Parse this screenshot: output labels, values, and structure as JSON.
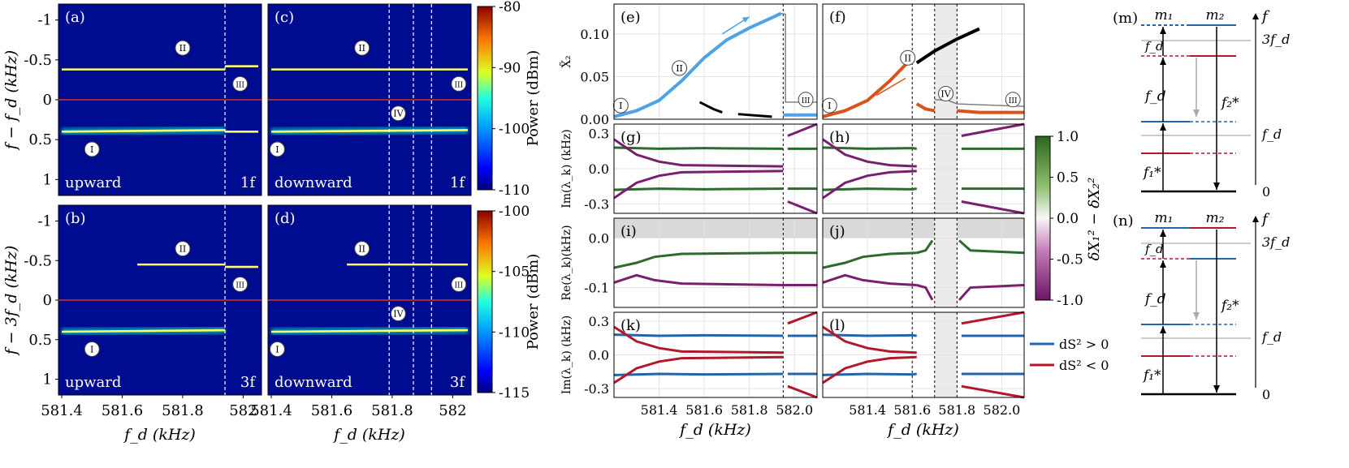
{
  "figure": {
    "spectrograms": [
      {
        "id": "a",
        "label": "(a)",
        "direction": "upward",
        "harmonic": "1f",
        "dashes": [
          581.94
        ],
        "branches": [
          {
            "y0": -0.38,
            "y1": -0.38,
            "xs": 581.4,
            "xe": 581.94,
            "feature": "II"
          },
          {
            "y0": 0.4,
            "y1": 0.38,
            "xs": 581.4,
            "xe": 581.94,
            "feature": "I"
          },
          {
            "y0": -0.42,
            "y1": -0.42,
            "xs": 581.94,
            "xe": 582.05,
            "feature": ""
          },
          {
            "y0": 0.4,
            "y1": 0.4,
            "xs": 581.94,
            "xe": 582.05,
            "feature": ""
          }
        ],
        "markers": [
          {
            "t": "II",
            "x": 581.8,
            "y": -0.65
          },
          {
            "t": "I",
            "x": 581.5,
            "y": 0.62
          },
          {
            "t": "III",
            "x": 581.99,
            "y": -0.2
          }
        ]
      },
      {
        "id": "c",
        "label": "(c)",
        "direction": "downward",
        "harmonic": "1f",
        "dashes": [
          581.79,
          581.87,
          581.93
        ],
        "branches": [
          {
            "y0": -0.38,
            "y1": -0.38,
            "xs": 581.4,
            "xe": 582.05,
            "feature": "II"
          },
          {
            "y0": 0.4,
            "y1": 0.38,
            "xs": 581.4,
            "xe": 582.05,
            "feature": "I"
          }
        ],
        "markers": [
          {
            "t": "II",
            "x": 581.7,
            "y": -0.65
          },
          {
            "t": "I",
            "x": 581.42,
            "y": 0.62
          },
          {
            "t": "III",
            "x": 582.02,
            "y": -0.2
          },
          {
            "t": "IV",
            "x": 581.82,
            "y": 0.17
          }
        ]
      },
      {
        "id": "b",
        "label": "(b)",
        "direction": "upward",
        "harmonic": "3f",
        "dashes": [
          581.94
        ],
        "branches": [
          {
            "y0": -0.45,
            "y1": -0.45,
            "xs": 581.65,
            "xe": 581.94,
            "feature": "II"
          },
          {
            "y0": 0.4,
            "y1": 0.38,
            "xs": 581.4,
            "xe": 581.94,
            "feature": "I"
          },
          {
            "y0": -0.42,
            "y1": -0.42,
            "xs": 581.94,
            "xe": 582.05,
            "feature": ""
          }
        ],
        "markers": [
          {
            "t": "II",
            "x": 581.8,
            "y": -0.65
          },
          {
            "t": "I",
            "x": 581.5,
            "y": 0.62
          },
          {
            "t": "III",
            "x": 581.99,
            "y": -0.2
          }
        ]
      },
      {
        "id": "d",
        "label": "(d)",
        "direction": "downward",
        "harmonic": "3f",
        "dashes": [
          581.79,
          581.87,
          581.93
        ],
        "branches": [
          {
            "y0": -0.45,
            "y1": -0.45,
            "xs": 581.65,
            "xe": 582.05,
            "feature": "II"
          },
          {
            "y0": 0.4,
            "y1": 0.38,
            "xs": 581.4,
            "xe": 582.05,
            "feature": "I"
          }
        ],
        "markers": [
          {
            "t": "II",
            "x": 581.7,
            "y": -0.65
          },
          {
            "t": "I",
            "x": 581.42,
            "y": 0.62
          },
          {
            "t": "III",
            "x": 582.02,
            "y": -0.2
          },
          {
            "t": "IV",
            "x": 581.82,
            "y": 0.17
          }
        ]
      }
    ],
    "spectrogram_axes": {
      "xlabel": "f_d (kHz)",
      "x_ticks": [
        "581.4",
        "581.6",
        "581.8",
        "582"
      ],
      "y_ticks": [
        "-1",
        "-0.5",
        "0",
        "0.5",
        "1"
      ],
      "ylabel_top": "f − f_d (kHz)",
      "ylabel_bottom": "f − 3f_d (kHz)"
    },
    "colorbars": [
      {
        "label": "Power (dBm)",
        "ticks": [
          "-80",
          "-90",
          "-100",
          "-110"
        ],
        "range": [
          -110,
          -80
        ]
      },
      {
        "label": "Power (dBm)",
        "ticks": [
          "-100",
          "-105",
          "-110",
          "-115"
        ],
        "range": [
          -115,
          -100
        ]
      }
    ],
    "stability_panels": {
      "panel_labels": [
        "(e)",
        "(f)",
        "(g)",
        "(h)",
        "(i)",
        "(j)",
        "(k)",
        "(l)"
      ],
      "xlabel": "f_d (kHz)",
      "x_ticks": [
        "581.4",
        "581.6",
        "581.8",
        "582.0"
      ],
      "row_ylabels": [
        "X̃₂",
        "Im(λ_k) (kHz)",
        "Re(λ_k)(kHz)",
        "Im(λ_k) (kHz)"
      ],
      "row_ticks": [
        [
          "0.10",
          "0.05",
          "0.00"
        ],
        [
          "0.3",
          "0.0",
          "-0.3"
        ],
        [
          "0.0",
          "-0.1"
        ],
        [
          "0.3",
          "0.0",
          "-0.3"
        ]
      ],
      "markers_e": [
        "I",
        "II",
        "III"
      ],
      "markers_f": [
        "I",
        "II",
        "IV",
        "III"
      ]
    },
    "diverging_colorbar": {
      "label": "δX₁² − δX₂²",
      "ticks": [
        "1.0",
        "0.5",
        "0.0",
        "-0.5",
        "-1.0"
      ]
    },
    "stability_legend": [
      {
        "label": "dS² > 0",
        "color": "#2166ac"
      },
      {
        "label": "dS² < 0",
        "color": "#b2182b"
      }
    ],
    "level_diagrams": [
      {
        "label": "(m)",
        "modes": [
          "m₁",
          "m₂"
        ],
        "axis": "f",
        "levels": [
          "3f_d",
          "f_d",
          "0"
        ],
        "arrows": [
          "f_d",
          "f₂*",
          "f₁*"
        ]
      },
      {
        "label": "(n)",
        "modes": [
          "m₁",
          "m₂"
        ],
        "axis": "f",
        "levels": [
          "3f_d",
          "f_d",
          "0"
        ],
        "arrows": [
          "f_d",
          "f₂*",
          "f₁*"
        ]
      }
    ],
    "colors": {
      "series_blue": "#4da3e6",
      "series_orange": "#d9541a",
      "series_black": "#000000",
      "branch_green": "#2d6a2d",
      "branch_purple": "#7a1f6e",
      "stable_blue": "#2166ac",
      "unstable_red": "#b2182b",
      "cmap_background": "#000c8f"
    }
  },
  "chart_data": [
    {
      "type": "heatmap",
      "panels": [
        "(a)",
        "(c)"
      ],
      "x": {
        "label": "f_d (kHz)",
        "range": [
          581.4,
          582.05
        ]
      },
      "y": {
        "label": "f − f_d (kHz)",
        "range": [
          -1.2,
          1.2
        ],
        "inverted": true
      },
      "colorbar": {
        "label": "Power (dBm)",
        "range": [
          -110,
          -80
        ]
      },
      "annotations": [
        "upward",
        "downward",
        "1f",
        "I",
        "II",
        "III",
        "IV"
      ]
    },
    {
      "type": "heatmap",
      "panels": [
        "(b)",
        "(d)"
      ],
      "x": {
        "label": "f_d (kHz)",
        "range": [
          581.4,
          582.05
        ]
      },
      "y": {
        "label": "f − 3f_d (kHz)",
        "range": [
          -1.2,
          1.2
        ],
        "inverted": true
      },
      "colorbar": {
        "label": "Power (dBm)",
        "range": [
          -115,
          -100
        ]
      },
      "annotations": [
        "upward",
        "downward",
        "3f",
        "I",
        "II",
        "III",
        "IV"
      ]
    },
    {
      "type": "line",
      "panels": [
        "(e)",
        "(f)"
      ],
      "xlim": [
        581.2,
        582.1
      ],
      "ylim": [
        0,
        0.135
      ],
      "ylabel": "X̃₂",
      "xlabel": "f_d (kHz)",
      "series": [
        {
          "color": "blue",
          "x": [
            581.2,
            581.3,
            581.4,
            581.5,
            581.6,
            581.7,
            581.8,
            581.9,
            581.94
          ],
          "y": [
            0.003,
            0.01,
            0.022,
            0.045,
            0.072,
            0.093,
            0.107,
            0.119,
            0.124
          ]
        },
        {
          "color": "black",
          "x": [
            581.62,
            581.7,
            581.8,
            581.9,
            582.0,
            582.1
          ],
          "y": [
            0.065,
            0.08,
            0.094,
            0.106,
            0.118,
            0.13
          ]
        },
        {
          "color": "orange",
          "x": [
            581.2,
            581.3,
            581.4,
            581.5,
            581.6,
            581.62
          ],
          "y": [
            0.003,
            0.01,
            0.022,
            0.045,
            0.063,
            0.066
          ]
        }
      ]
    },
    {
      "type": "line",
      "panels": [
        "(g)",
        "(h)",
        "(i)",
        "(j)",
        "(k)",
        "(l)"
      ],
      "xlim": [
        581.2,
        582.1
      ],
      "ylim_im": [
        -0.38,
        0.38
      ],
      "ylim_re": [
        -0.14,
        0.04
      ],
      "xlabel": "f_d (kHz)"
    }
  ]
}
